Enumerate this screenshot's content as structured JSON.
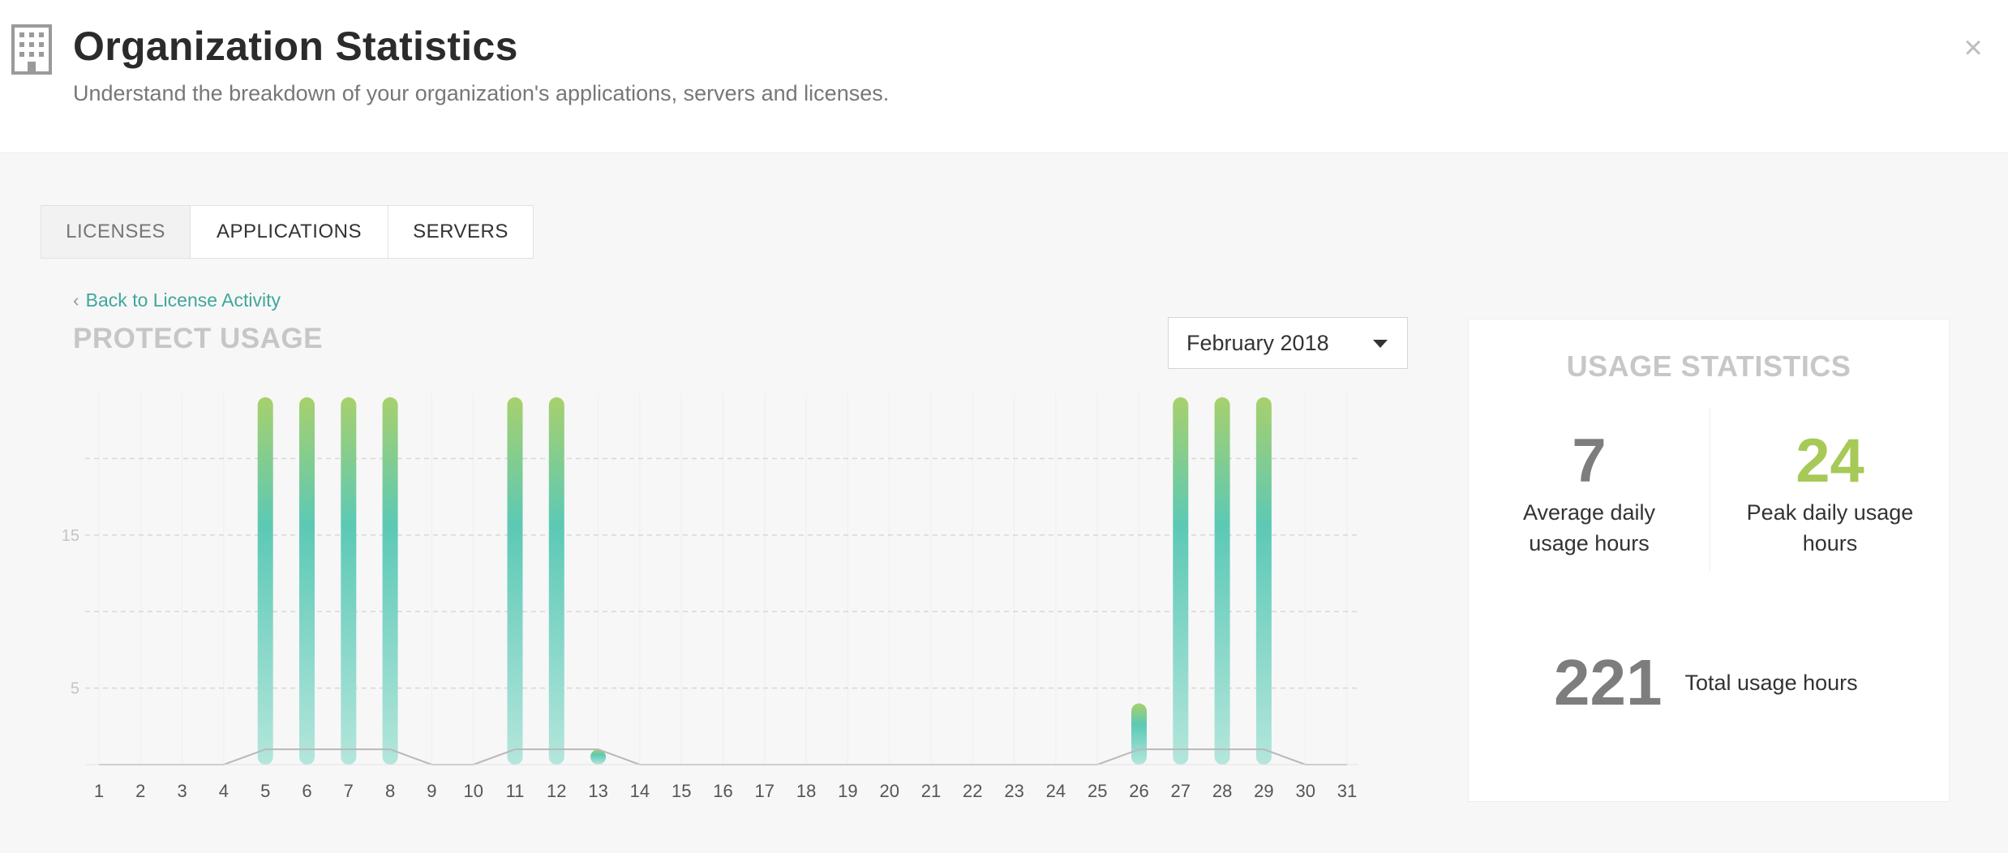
{
  "header": {
    "title": "Organization Statistics",
    "subtitle": "Understand the breakdown of your organization's applications, servers and licenses.",
    "close_label": "×"
  },
  "tabs": [
    {
      "label": "LICENSES",
      "active": true
    },
    {
      "label": "APPLICATIONS",
      "active": false
    },
    {
      "label": "SERVERS",
      "active": false
    }
  ],
  "back_link": {
    "chevron": "‹",
    "label": "Back to License Activity"
  },
  "chart_title": "PROTECT USAGE",
  "month_select": {
    "selected": "February 2018"
  },
  "stats": {
    "title": "USAGE STATISTICS",
    "average": {
      "value": "7",
      "label_line1": "Average daily",
      "label_line2": "usage hours"
    },
    "peak": {
      "value": "24",
      "label_line1": "Peak daily usage",
      "label_line2": "hours"
    },
    "total": {
      "value": "221",
      "label": "Total usage hours"
    }
  },
  "colors": {
    "bar_top": "#a7d06d",
    "bar_mid": "#5cc9b5",
    "bar_bottom": "#b4e6dc",
    "peak_value": "#a7c957",
    "link": "#3fa79a"
  },
  "chart_data": {
    "type": "bar",
    "x": [
      1,
      2,
      3,
      4,
      5,
      6,
      7,
      8,
      9,
      10,
      11,
      12,
      13,
      14,
      15,
      16,
      17,
      18,
      19,
      20,
      21,
      22,
      23,
      24,
      25,
      26,
      27,
      28,
      29,
      30,
      31
    ],
    "values": [
      0,
      0,
      0,
      0,
      24,
      24,
      24,
      24,
      0,
      0,
      24,
      24,
      1,
      0,
      0,
      0,
      0,
      0,
      0,
      0,
      0,
      0,
      0,
      0,
      0,
      4,
      24,
      24,
      24,
      0,
      0
    ],
    "baseline_line": [
      0,
      0,
      0,
      0,
      1,
      1,
      1,
      1,
      0,
      0,
      1,
      1,
      1,
      0,
      0,
      0,
      0,
      0,
      0,
      0,
      0,
      0,
      0,
      0,
      0,
      1,
      1,
      1,
      1,
      0,
      0
    ],
    "ytick_labels": [
      "5",
      "15"
    ],
    "ylim": [
      0,
      24
    ],
    "grid": true
  }
}
